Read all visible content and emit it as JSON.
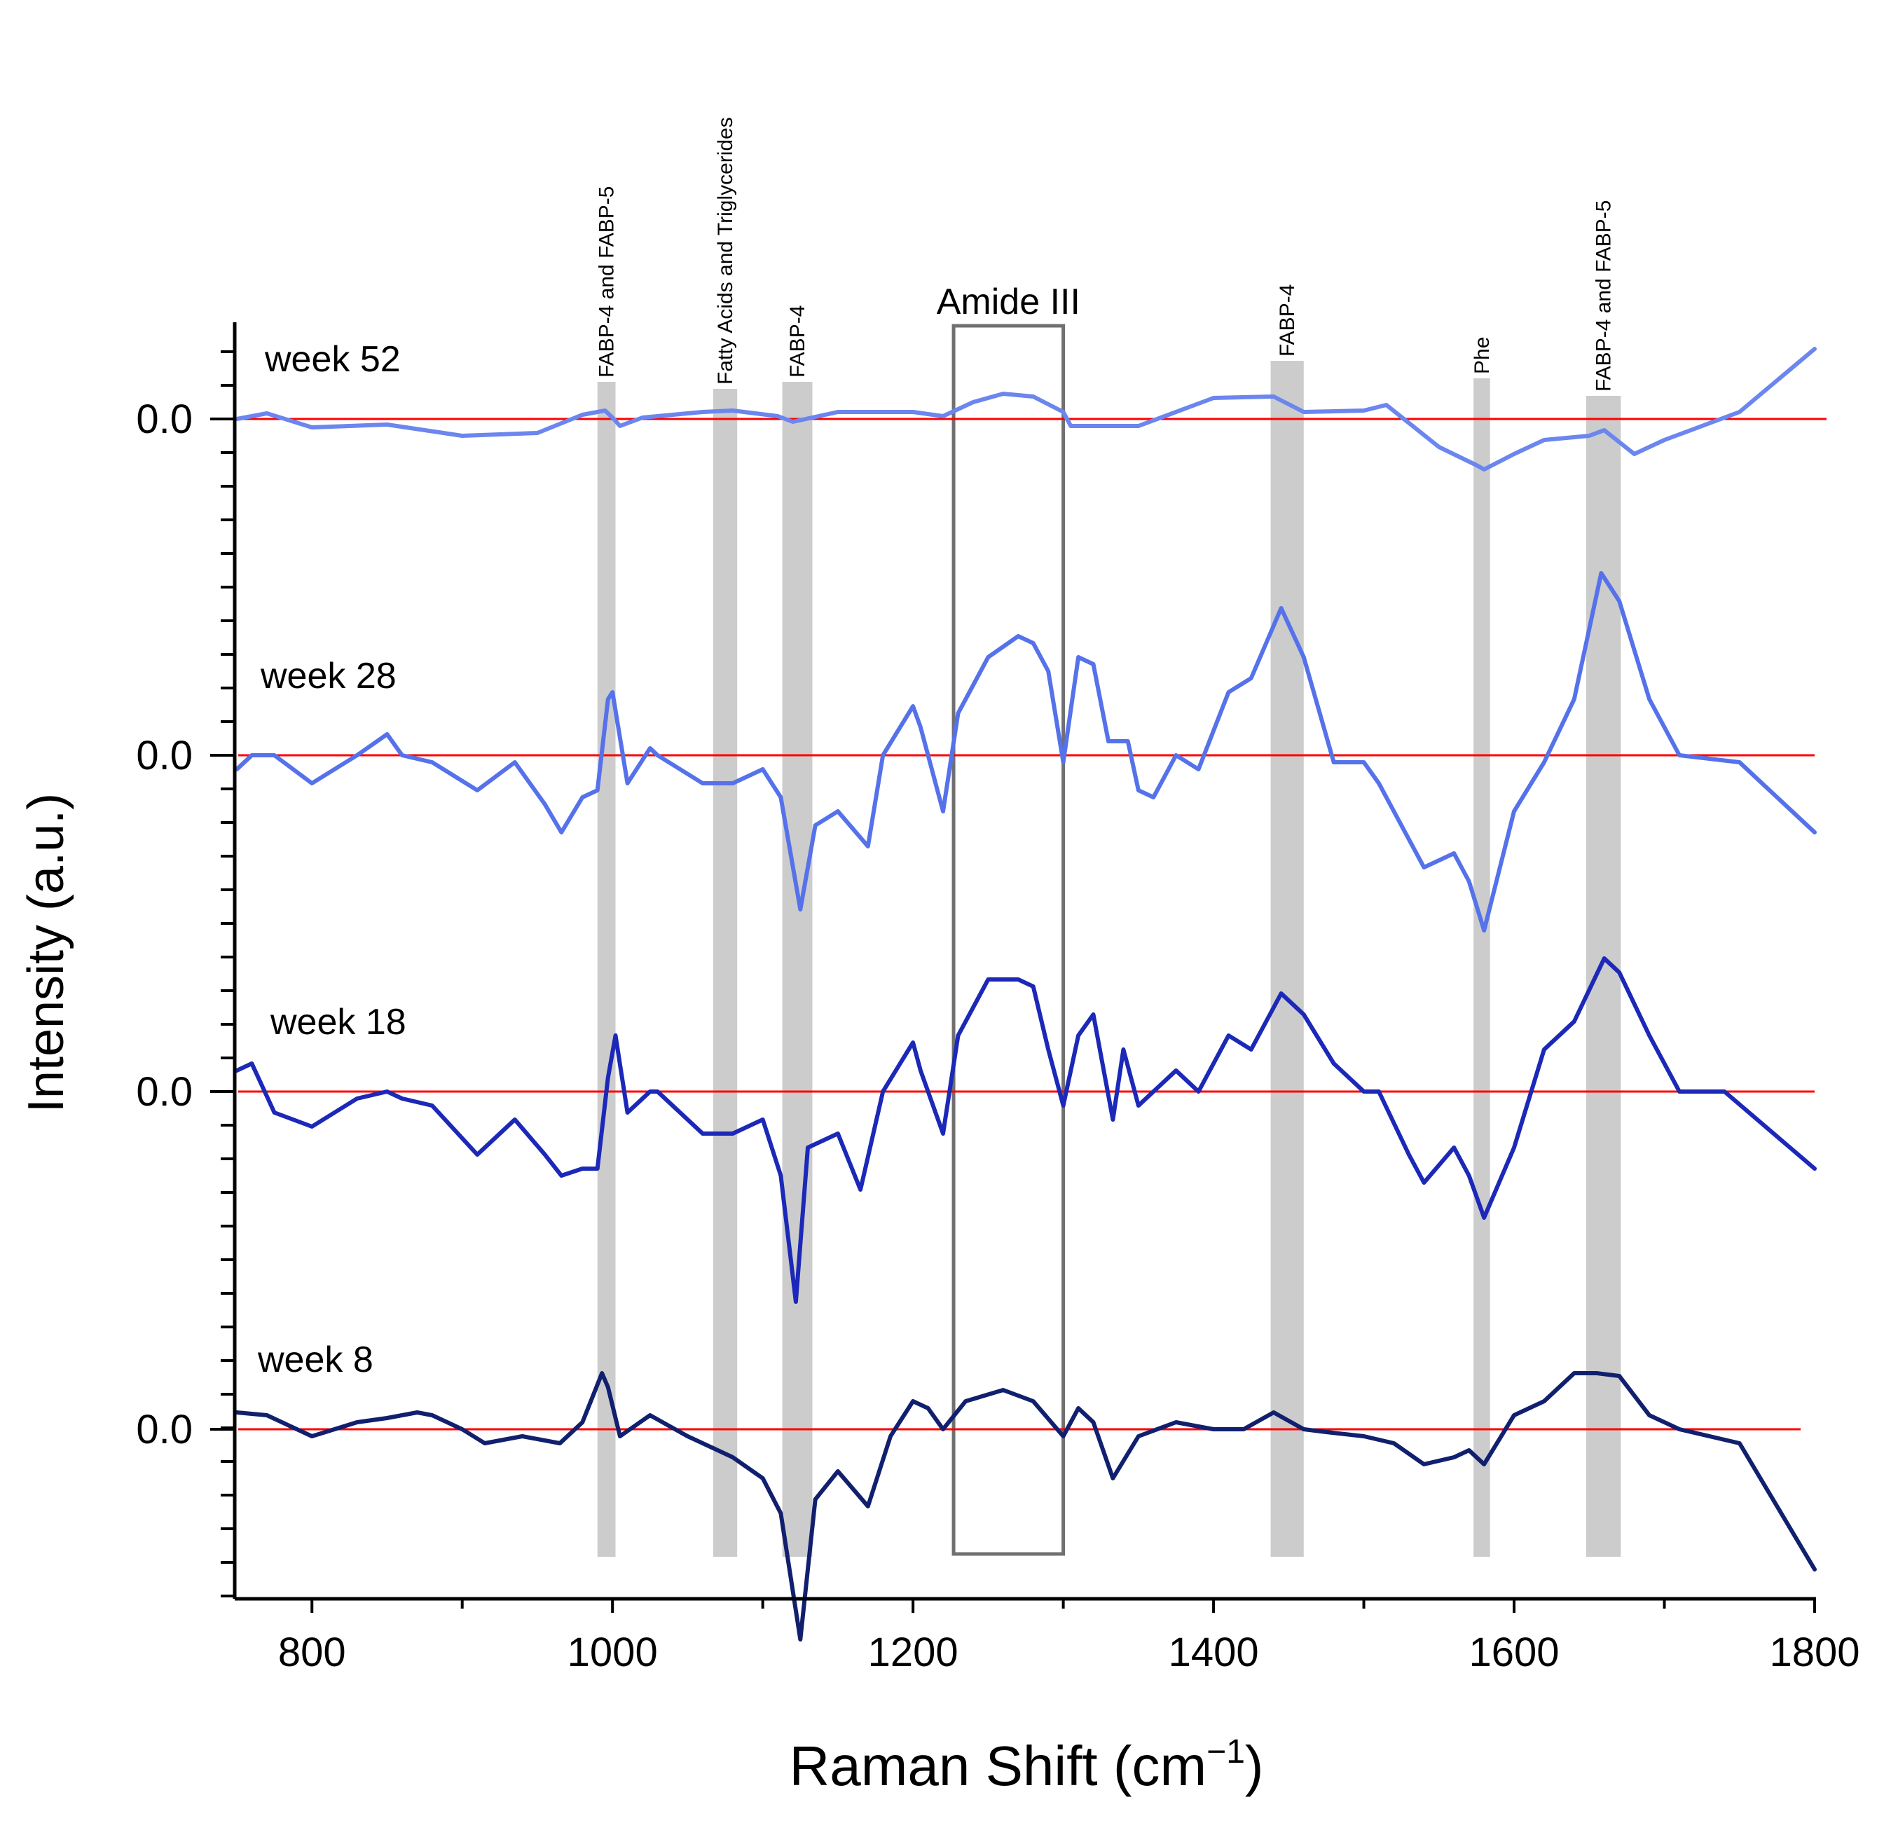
{
  "chart_data": {
    "type": "line",
    "title": "",
    "xlabel": "Raman Shift (cm",
    "xlabel_sup": "−1",
    "xlabel_close": ")",
    "ylabel": "Intensity (a.u.)",
    "xlim": [
      750,
      1800
    ],
    "xticks": [
      800,
      1000,
      1200,
      1400,
      1600,
      1800
    ],
    "baseline_label": "0.0",
    "colors": {
      "week52": "#6b86ee",
      "week28": "#5572ea",
      "week18": "#1b28b8",
      "week8": "#11206e",
      "baseline": "#ff0000",
      "band": "#cccccc",
      "amide_box": "#707070"
    },
    "bands": [
      {
        "label": "FABP-4 and FABP-5",
        "from": 990,
        "to": 1002
      },
      {
        "label": "Fatty Acids and Triglycerides",
        "from": 1067,
        "to": 1083
      },
      {
        "label": "FABP-4",
        "from": 1113,
        "to": 1133
      },
      {
        "label": "FABP-4",
        "from": 1438,
        "to": 1460
      },
      {
        "label": "Phe",
        "from": 1573,
        "to": 1584
      },
      {
        "label": "FABP-4 and FABP-5",
        "from": 1648,
        "to": 1671
      }
    ],
    "amide_box": {
      "label": "Amide III",
      "from": 1227,
      "to": 1300
    },
    "series": [
      {
        "name": "week 52",
        "key": "week52",
        "x": [
          750,
          770,
          800,
          850,
          900,
          950,
          980,
          995,
          1000,
          1005,
          1020,
          1060,
          1080,
          1110,
          1120,
          1150,
          1200,
          1220,
          1240,
          1260,
          1280,
          1300,
          1305,
          1350,
          1400,
          1440,
          1460,
          1500,
          1515,
          1550,
          1575,
          1580,
          1600,
          1620,
          1650,
          1660,
          1680,
          1700,
          1750,
          1800
        ],
        "y": [
          0.0,
          0.04,
          -0.06,
          -0.04,
          -0.12,
          -0.1,
          0.03,
          0.06,
          0.01,
          -0.05,
          0.01,
          0.05,
          0.06,
          0.02,
          -0.02,
          0.05,
          0.05,
          0.02,
          0.12,
          0.18,
          0.16,
          0.05,
          -0.05,
          -0.05,
          0.15,
          0.16,
          0.05,
          0.06,
          0.1,
          -0.2,
          -0.33,
          -0.36,
          -0.25,
          -0.15,
          -0.12,
          -0.08,
          -0.25,
          -0.15,
          0.05,
          0.5
        ]
      },
      {
        "name": "week 28",
        "key": "week28",
        "x": [
          750,
          760,
          775,
          800,
          830,
          850,
          860,
          880,
          910,
          935,
          955,
          966,
          980,
          990,
          997,
          1000,
          1010,
          1025,
          1030,
          1045,
          1060,
          1080,
          1100,
          1112,
          1125,
          1135,
          1150,
          1170,
          1180,
          1200,
          1205,
          1220,
          1230,
          1250,
          1270,
          1280,
          1290,
          1300,
          1310,
          1320,
          1330,
          1343,
          1350,
          1360,
          1375,
          1390,
          1410,
          1425,
          1445,
          1460,
          1480,
          1500,
          1510,
          1530,
          1540,
          1560,
          1570,
          1580,
          1600,
          1620,
          1640,
          1658,
          1670,
          1690,
          1710,
          1750,
          1800
        ],
        "y": [
          -0.1,
          0.0,
          0.0,
          -0.2,
          0.0,
          0.15,
          0.0,
          -0.05,
          -0.25,
          -0.05,
          -0.35,
          -0.55,
          -0.3,
          -0.25,
          0.4,
          0.45,
          -0.2,
          0.05,
          0.0,
          -0.1,
          -0.2,
          -0.2,
          -0.1,
          -0.3,
          -1.1,
          -0.5,
          -0.4,
          -0.65,
          0.0,
          0.35,
          0.2,
          -0.4,
          0.3,
          0.7,
          0.85,
          0.8,
          0.6,
          -0.05,
          0.7,
          0.65,
          0.1,
          0.1,
          -0.25,
          -0.3,
          0.0,
          -0.1,
          0.45,
          0.55,
          1.05,
          0.7,
          -0.05,
          -0.05,
          -0.2,
          -0.6,
          -0.8,
          -0.7,
          -0.9,
          -1.25,
          -0.4,
          -0.05,
          0.4,
          1.3,
          1.1,
          0.4,
          0.0,
          -0.05,
          -0.55
        ]
      },
      {
        "name": "week 18",
        "key": "week18",
        "x": [
          750,
          760,
          775,
          800,
          830,
          850,
          860,
          880,
          910,
          935,
          955,
          966,
          980,
          990,
          997,
          1002,
          1010,
          1025,
          1030,
          1045,
          1060,
          1080,
          1100,
          1112,
          1122,
          1130,
          1150,
          1165,
          1180,
          1200,
          1205,
          1220,
          1230,
          1250,
          1270,
          1280,
          1290,
          1300,
          1310,
          1320,
          1333,
          1340,
          1350,
          1360,
          1375,
          1390,
          1410,
          1425,
          1445,
          1460,
          1480,
          1500,
          1510,
          1530,
          1540,
          1560,
          1570,
          1580,
          1600,
          1620,
          1640,
          1660,
          1670,
          1690,
          1710,
          1740,
          1800
        ],
        "y": [
          0.15,
          0.2,
          -0.15,
          -0.25,
          -0.05,
          0.0,
          -0.05,
          -0.1,
          -0.45,
          -0.2,
          -0.45,
          -0.6,
          -0.55,
          -0.55,
          0.1,
          0.4,
          -0.15,
          0.0,
          0.0,
          -0.15,
          -0.3,
          -0.3,
          -0.2,
          -0.6,
          -1.5,
          -0.4,
          -0.3,
          -0.7,
          0.0,
          0.35,
          0.15,
          -0.3,
          0.4,
          0.8,
          0.8,
          0.75,
          0.3,
          -0.1,
          0.4,
          0.55,
          -0.2,
          0.3,
          -0.1,
          0.0,
          0.15,
          0.0,
          0.4,
          0.3,
          0.7,
          0.55,
          0.2,
          0.0,
          0.0,
          -0.45,
          -0.65,
          -0.4,
          -0.6,
          -0.9,
          -0.4,
          0.3,
          0.5,
          0.95,
          0.85,
          0.4,
          0.0,
          0.0,
          -0.55
        ]
      },
      {
        "name": "week 8",
        "key": "week8",
        "x": [
          750,
          770,
          800,
          830,
          850,
          870,
          880,
          900,
          915,
          940,
          965,
          980,
          993,
          997,
          1005,
          1025,
          1050,
          1080,
          1100,
          1112,
          1125,
          1135,
          1150,
          1170,
          1185,
          1200,
          1210,
          1220,
          1235,
          1260,
          1280,
          1300,
          1310,
          1320,
          1333,
          1350,
          1375,
          1400,
          1420,
          1440,
          1460,
          1475,
          1500,
          1520,
          1540,
          1560,
          1570,
          1580,
          1600,
          1620,
          1640,
          1655,
          1670,
          1690,
          1710,
          1750,
          1800
        ],
        "y": [
          0.12,
          0.1,
          -0.05,
          0.05,
          0.08,
          0.12,
          0.1,
          0.0,
          -0.1,
          -0.05,
          -0.1,
          0.05,
          0.4,
          0.3,
          -0.05,
          0.1,
          -0.05,
          -0.2,
          -0.35,
          -0.6,
          -1.5,
          -0.5,
          -0.3,
          -0.55,
          -0.05,
          0.2,
          0.15,
          0.0,
          0.2,
          0.28,
          0.2,
          -0.05,
          0.15,
          0.05,
          -0.35,
          -0.05,
          0.05,
          0.0,
          0.0,
          0.12,
          0.0,
          -0.02,
          -0.05,
          -0.1,
          -0.25,
          -0.2,
          -0.15,
          -0.25,
          0.1,
          0.2,
          0.4,
          0.4,
          0.38,
          0.1,
          0.0,
          -0.1,
          -1.0
        ]
      }
    ]
  }
}
